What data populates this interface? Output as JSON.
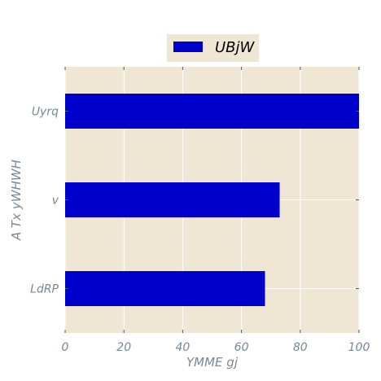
{
  "chart_data": {
    "type": "bar",
    "orientation": "horizontal",
    "categories": [
      "Uyrq",
      "v",
      "LdRP"
    ],
    "series": [
      {
        "name": "UBjW",
        "values": [
          100,
          73,
          68
        ]
      }
    ],
    "xlabel": "YMME gj",
    "ylabel": "A Tx  yWHWH",
    "xlim": [
      0,
      100
    ],
    "xticks": [
      "0",
      "20",
      "40",
      "60",
      "80",
      "100"
    ],
    "grid": true,
    "legend_position": "top-center",
    "colors": {
      "bar": "#0000cd",
      "plot_background": "#efe6d4",
      "grid": "#ffffff",
      "text": "#778899"
    }
  }
}
